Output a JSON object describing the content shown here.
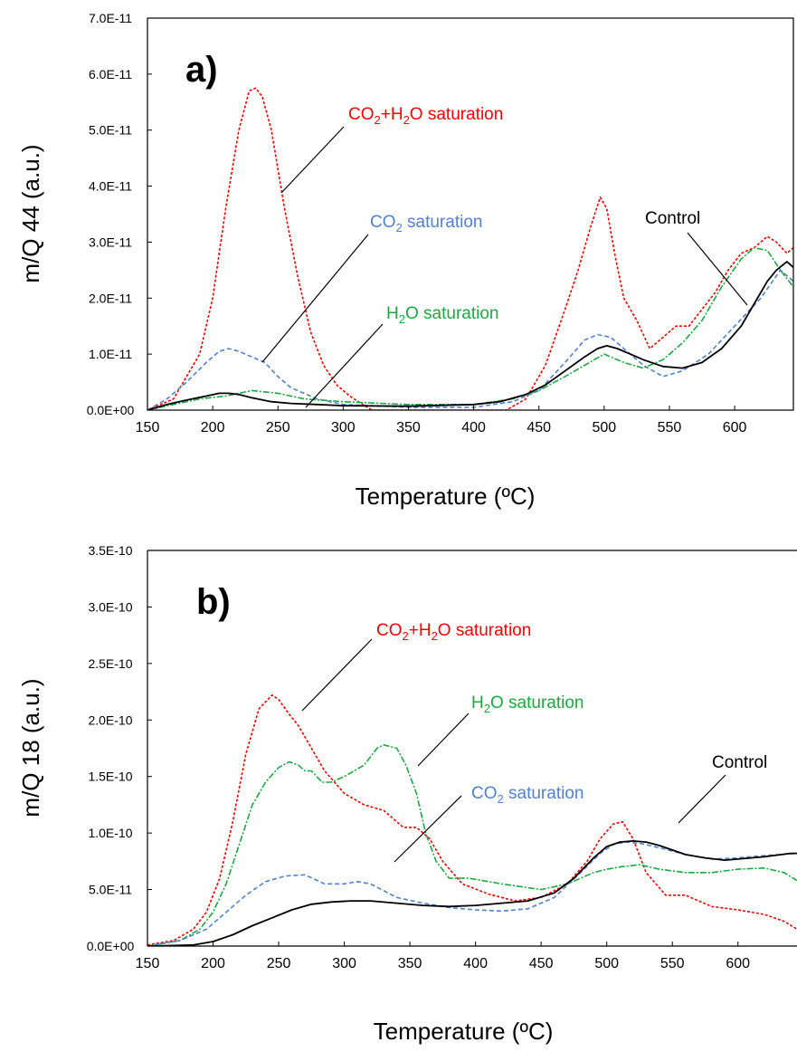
{
  "colors": {
    "co2_h2o": "#ff0000",
    "co2": "#4f81d4",
    "h2o": "#1aab3f",
    "control": "#000000"
  },
  "chart_data": [
    {
      "type": "line",
      "panel_label": "a)",
      "xlabel": "Temperature (ºC)",
      "ylabel": "m/Q 44 (a.u.)",
      "xlim": [
        150,
        645
      ],
      "ylim": [
        0,
        7e-11
      ],
      "x_ticks": [
        "150",
        "200",
        "250",
        "300",
        "350",
        "400",
        "450",
        "500",
        "550",
        "600"
      ],
      "y_ticks": [
        "0.0E+00",
        "1.0E-11",
        "2.0E-11",
        "3.0E-11",
        "4.0E-11",
        "5.0E-11",
        "6.0E-11",
        "7.0E-11"
      ],
      "grid": false,
      "annotations": [
        {
          "series": "co2_h2o",
          "parts": [
            "CO",
            "2",
            "+H",
            "2",
            "O saturation"
          ]
        },
        {
          "series": "co2",
          "parts": [
            "CO",
            "2",
            " saturation"
          ]
        },
        {
          "series": "h2o",
          "parts": [
            "H",
            "2",
            "O saturation"
          ]
        },
        {
          "series": "control",
          "parts": [
            "Control"
          ]
        }
      ],
      "series": [
        {
          "key": "co2_h2o",
          "dash": "3,2",
          "x": [
            150,
            170,
            190,
            200,
            210,
            220,
            228,
            233,
            238,
            245,
            255,
            265,
            275,
            285,
            295,
            305,
            315,
            322,
            330,
            350,
            400,
            425,
            440,
            455,
            470,
            480,
            490,
            497,
            502,
            508,
            515,
            525,
            535,
            545,
            555,
            565,
            575,
            585,
            595,
            605,
            615,
            625,
            632,
            640,
            645
          ],
          "y": [
            0,
            2e-12,
            1e-11,
            2e-11,
            3.6e-11,
            5e-11,
            5.7e-11,
            5.75e-11,
            5.6e-11,
            5e-11,
            3.6e-11,
            2.4e-11,
            1.4e-11,
            8e-12,
            4.5e-12,
            2.5e-12,
            1e-12,
            0,
            0,
            0,
            0,
            0,
            2e-12,
            8e-12,
            1.8e-11,
            2.5e-11,
            3.3e-11,
            3.8e-11,
            3.6e-11,
            2.8e-11,
            2e-11,
            1.6e-11,
            1.1e-11,
            1.3e-11,
            1.5e-11,
            1.5e-11,
            1.8e-11,
            2.1e-11,
            2.5e-11,
            2.8e-11,
            2.9e-11,
            3.1e-11,
            3e-11,
            2.8e-11,
            2.9e-11
          ]
        },
        {
          "key": "co2",
          "dash": "5,3",
          "x": [
            150,
            165,
            180,
            195,
            205,
            212,
            220,
            230,
            240,
            250,
            260,
            280,
            300,
            350,
            400,
            430,
            450,
            470,
            485,
            495,
            505,
            515,
            530,
            545,
            560,
            580,
            600,
            620,
            635,
            645
          ],
          "y": [
            0,
            2e-12,
            5e-12,
            8.5e-12,
            1.05e-11,
            1.1e-11,
            1.05e-11,
            9.5e-12,
            8.5e-12,
            6e-12,
            4e-12,
            2e-12,
            1e-12,
            5e-13,
            5e-13,
            1.5e-12,
            3.5e-12,
            8.5e-12,
            1.25e-11,
            1.35e-11,
            1.3e-11,
            1.1e-11,
            8e-12,
            6e-12,
            7e-12,
            1e-11,
            1.5e-11,
            2e-11,
            2.5e-11,
            2.3e-11
          ]
        },
        {
          "key": "h2o",
          "dash": "7,2,2,2",
          "x": [
            150,
            170,
            190,
            210,
            230,
            250,
            270,
            300,
            350,
            400,
            430,
            450,
            470,
            485,
            500,
            515,
            530,
            545,
            560,
            575,
            590,
            605,
            615,
            625,
            635,
            645
          ],
          "y": [
            0,
            1e-12,
            2e-12,
            2.5e-12,
            3.5e-12,
            3e-12,
            2e-12,
            1.5e-12,
            1e-12,
            1e-12,
            2e-12,
            3.5e-12,
            6e-12,
            8e-12,
            1e-11,
            8.5e-12,
            7.5e-12,
            9e-12,
            1.2e-11,
            1.6e-11,
            2.2e-11,
            2.7e-11,
            2.9e-11,
            2.85e-11,
            2.5e-11,
            2.2e-11
          ]
        },
        {
          "key": "control",
          "dash": "",
          "x": [
            150,
            165,
            180,
            195,
            205,
            212,
            220,
            230,
            245,
            260,
            280,
            300,
            350,
            400,
            420,
            440,
            455,
            470,
            485,
            495,
            502,
            510,
            520,
            530,
            545,
            560,
            575,
            590,
            605,
            615,
            625,
            632,
            640,
            645
          ],
          "y": [
            0,
            1e-12,
            1.8e-12,
            2.5e-12,
            3e-12,
            3e-12,
            2.8e-12,
            2.2e-12,
            1.5e-12,
            1.2e-12,
            1e-12,
            8e-13,
            7e-13,
            1e-12,
            1.5e-12,
            2.8e-12,
            4.5e-12,
            7e-12,
            9.5e-12,
            1.1e-11,
            1.15e-11,
            1.1e-11,
            1e-11,
            9e-12,
            7.8e-12,
            7.5e-12,
            8.5e-12,
            1.1e-11,
            1.5e-11,
            1.9e-11,
            2.3e-11,
            2.5e-11,
            2.65e-11,
            2.55e-11
          ]
        }
      ]
    },
    {
      "type": "line",
      "panel_label": "b)",
      "xlabel": "Temperature (ºC)",
      "ylabel": "m/Q 18 (a.u.)",
      "xlim": [
        150,
        645
      ],
      "ylim": [
        0,
        3.5e-10
      ],
      "x_ticks": [
        "150",
        "200",
        "250",
        "300",
        "350",
        "400",
        "450",
        "500",
        "550",
        "600"
      ],
      "y_ticks": [
        "0.0E+00",
        "5.0E-11",
        "1.0E-10",
        "1.5E-10",
        "2.0E-10",
        "2.5E-10",
        "3.0E-10",
        "3.5E-10"
      ],
      "grid": false,
      "annotations": [
        {
          "series": "co2_h2o",
          "parts": [
            "CO",
            "2",
            "+H",
            "2",
            "O saturation"
          ]
        },
        {
          "series": "h2o",
          "parts": [
            "H",
            "2",
            "O saturation"
          ]
        },
        {
          "series": "co2",
          "parts": [
            "CO",
            "2",
            " saturation"
          ]
        },
        {
          "series": "control",
          "parts": [
            "Control"
          ]
        }
      ],
      "series": [
        {
          "key": "co2_h2o",
          "dash": "3,2",
          "x": [
            150,
            170,
            185,
            195,
            205,
            215,
            225,
            235,
            245,
            250,
            258,
            265,
            275,
            285,
            300,
            315,
            330,
            345,
            355,
            365,
            375,
            390,
            410,
            430,
            450,
            470,
            485,
            495,
            505,
            512,
            520,
            530,
            545,
            560,
            580,
            600,
            620,
            635,
            645
          ],
          "y": [
            1e-12,
            5e-12,
            1.5e-11,
            3e-11,
            6e-11,
            1.1e-10,
            1.7e-10,
            2.1e-10,
            2.22e-10,
            2.18e-10,
            2.05e-10,
            1.95e-10,
            1.75e-10,
            1.55e-10,
            1.35e-10,
            1.25e-10,
            1.2e-10,
            1.05e-10,
            1.05e-10,
            9.5e-11,
            7.5e-11,
            5.5e-11,
            4.6e-11,
            4e-11,
            4.3e-11,
            5.5e-11,
            7.5e-11,
            9.5e-11,
            1.08e-10,
            1.1e-10,
            9.5e-11,
            6.5e-11,
            4.5e-11,
            4.5e-11,
            3.5e-11,
            3.2e-11,
            2.8e-11,
            2.2e-11,
            1.5e-11
          ]
        },
        {
          "key": "h2o",
          "dash": "7,2,2,2",
          "x": [
            150,
            175,
            190,
            200,
            210,
            220,
            230,
            240,
            250,
            258,
            265,
            270,
            275,
            283,
            290,
            300,
            315,
            325,
            330,
            340,
            347,
            355,
            362,
            370,
            380,
            395,
            420,
            450,
            470,
            490,
            500,
            510,
            525,
            540,
            560,
            580,
            600,
            620,
            635,
            645
          ],
          "y": [
            0,
            5e-12,
            1.5e-11,
            3e-11,
            5.5e-11,
            9e-11,
            1.25e-10,
            1.45e-10,
            1.58e-10,
            1.63e-10,
            1.6e-10,
            1.55e-10,
            1.55e-10,
            1.45e-10,
            1.45e-10,
            1.5e-10,
            1.6e-10,
            1.75e-10,
            1.78e-10,
            1.75e-10,
            1.6e-10,
            1.35e-10,
            1e-10,
            7.5e-11,
            6e-11,
            6e-11,
            5.5e-11,
            5e-11,
            5.5e-11,
            6.5e-11,
            6.8e-11,
            7e-11,
            7.2e-11,
            6.8e-11,
            6.5e-11,
            6.5e-11,
            6.8e-11,
            6.9e-11,
            6.5e-11,
            5.8e-11
          ]
        },
        {
          "key": "co2",
          "dash": "5,3",
          "x": [
            150,
            175,
            195,
            210,
            225,
            240,
            255,
            270,
            285,
            300,
            310,
            320,
            340,
            360,
            380,
            400,
            420,
            440,
            460,
            480,
            495,
            505,
            515,
            525,
            540,
            560,
            580,
            600,
            620,
            645
          ],
          "y": [
            0,
            5e-12,
            1.5e-11,
            3e-11,
            4.5e-11,
            5.7e-11,
            6.2e-11,
            6.3e-11,
            5.5e-11,
            5.5e-11,
            5.7e-11,
            5.5e-11,
            4.3e-11,
            3.8e-11,
            3.4e-11,
            3.2e-11,
            3.1e-11,
            3.3e-11,
            4.3e-11,
            6.5e-11,
            8.2e-11,
            9e-11,
            9.2e-11,
            9.1e-11,
            8.7e-11,
            8.1e-11,
            7.7e-11,
            7.8e-11,
            8e-11,
            8.2e-11
          ]
        },
        {
          "key": "control",
          "dash": "",
          "x": [
            150,
            170,
            185,
            200,
            215,
            230,
            245,
            260,
            275,
            290,
            305,
            320,
            340,
            360,
            380,
            400,
            420,
            440,
            460,
            475,
            490,
            500,
            510,
            520,
            530,
            540,
            550,
            560,
            575,
            590,
            600,
            620,
            640,
            645
          ],
          "y": [
            0,
            5e-13,
            1e-12,
            4e-12,
            1e-11,
            1.8e-11,
            2.5e-11,
            3.2e-11,
            3.7e-11,
            3.9e-11,
            4e-11,
            4e-11,
            3.8e-11,
            3.6e-11,
            3.5e-11,
            3.6e-11,
            3.8e-11,
            4e-11,
            4.7e-11,
            6e-11,
            7.8e-11,
            8.8e-11,
            9.2e-11,
            9.3e-11,
            9.2e-11,
            8.9e-11,
            8.5e-11,
            8.1e-11,
            7.8e-11,
            7.6e-11,
            7.7e-11,
            7.9e-11,
            8.2e-11,
            8.2e-11
          ]
        }
      ]
    }
  ]
}
